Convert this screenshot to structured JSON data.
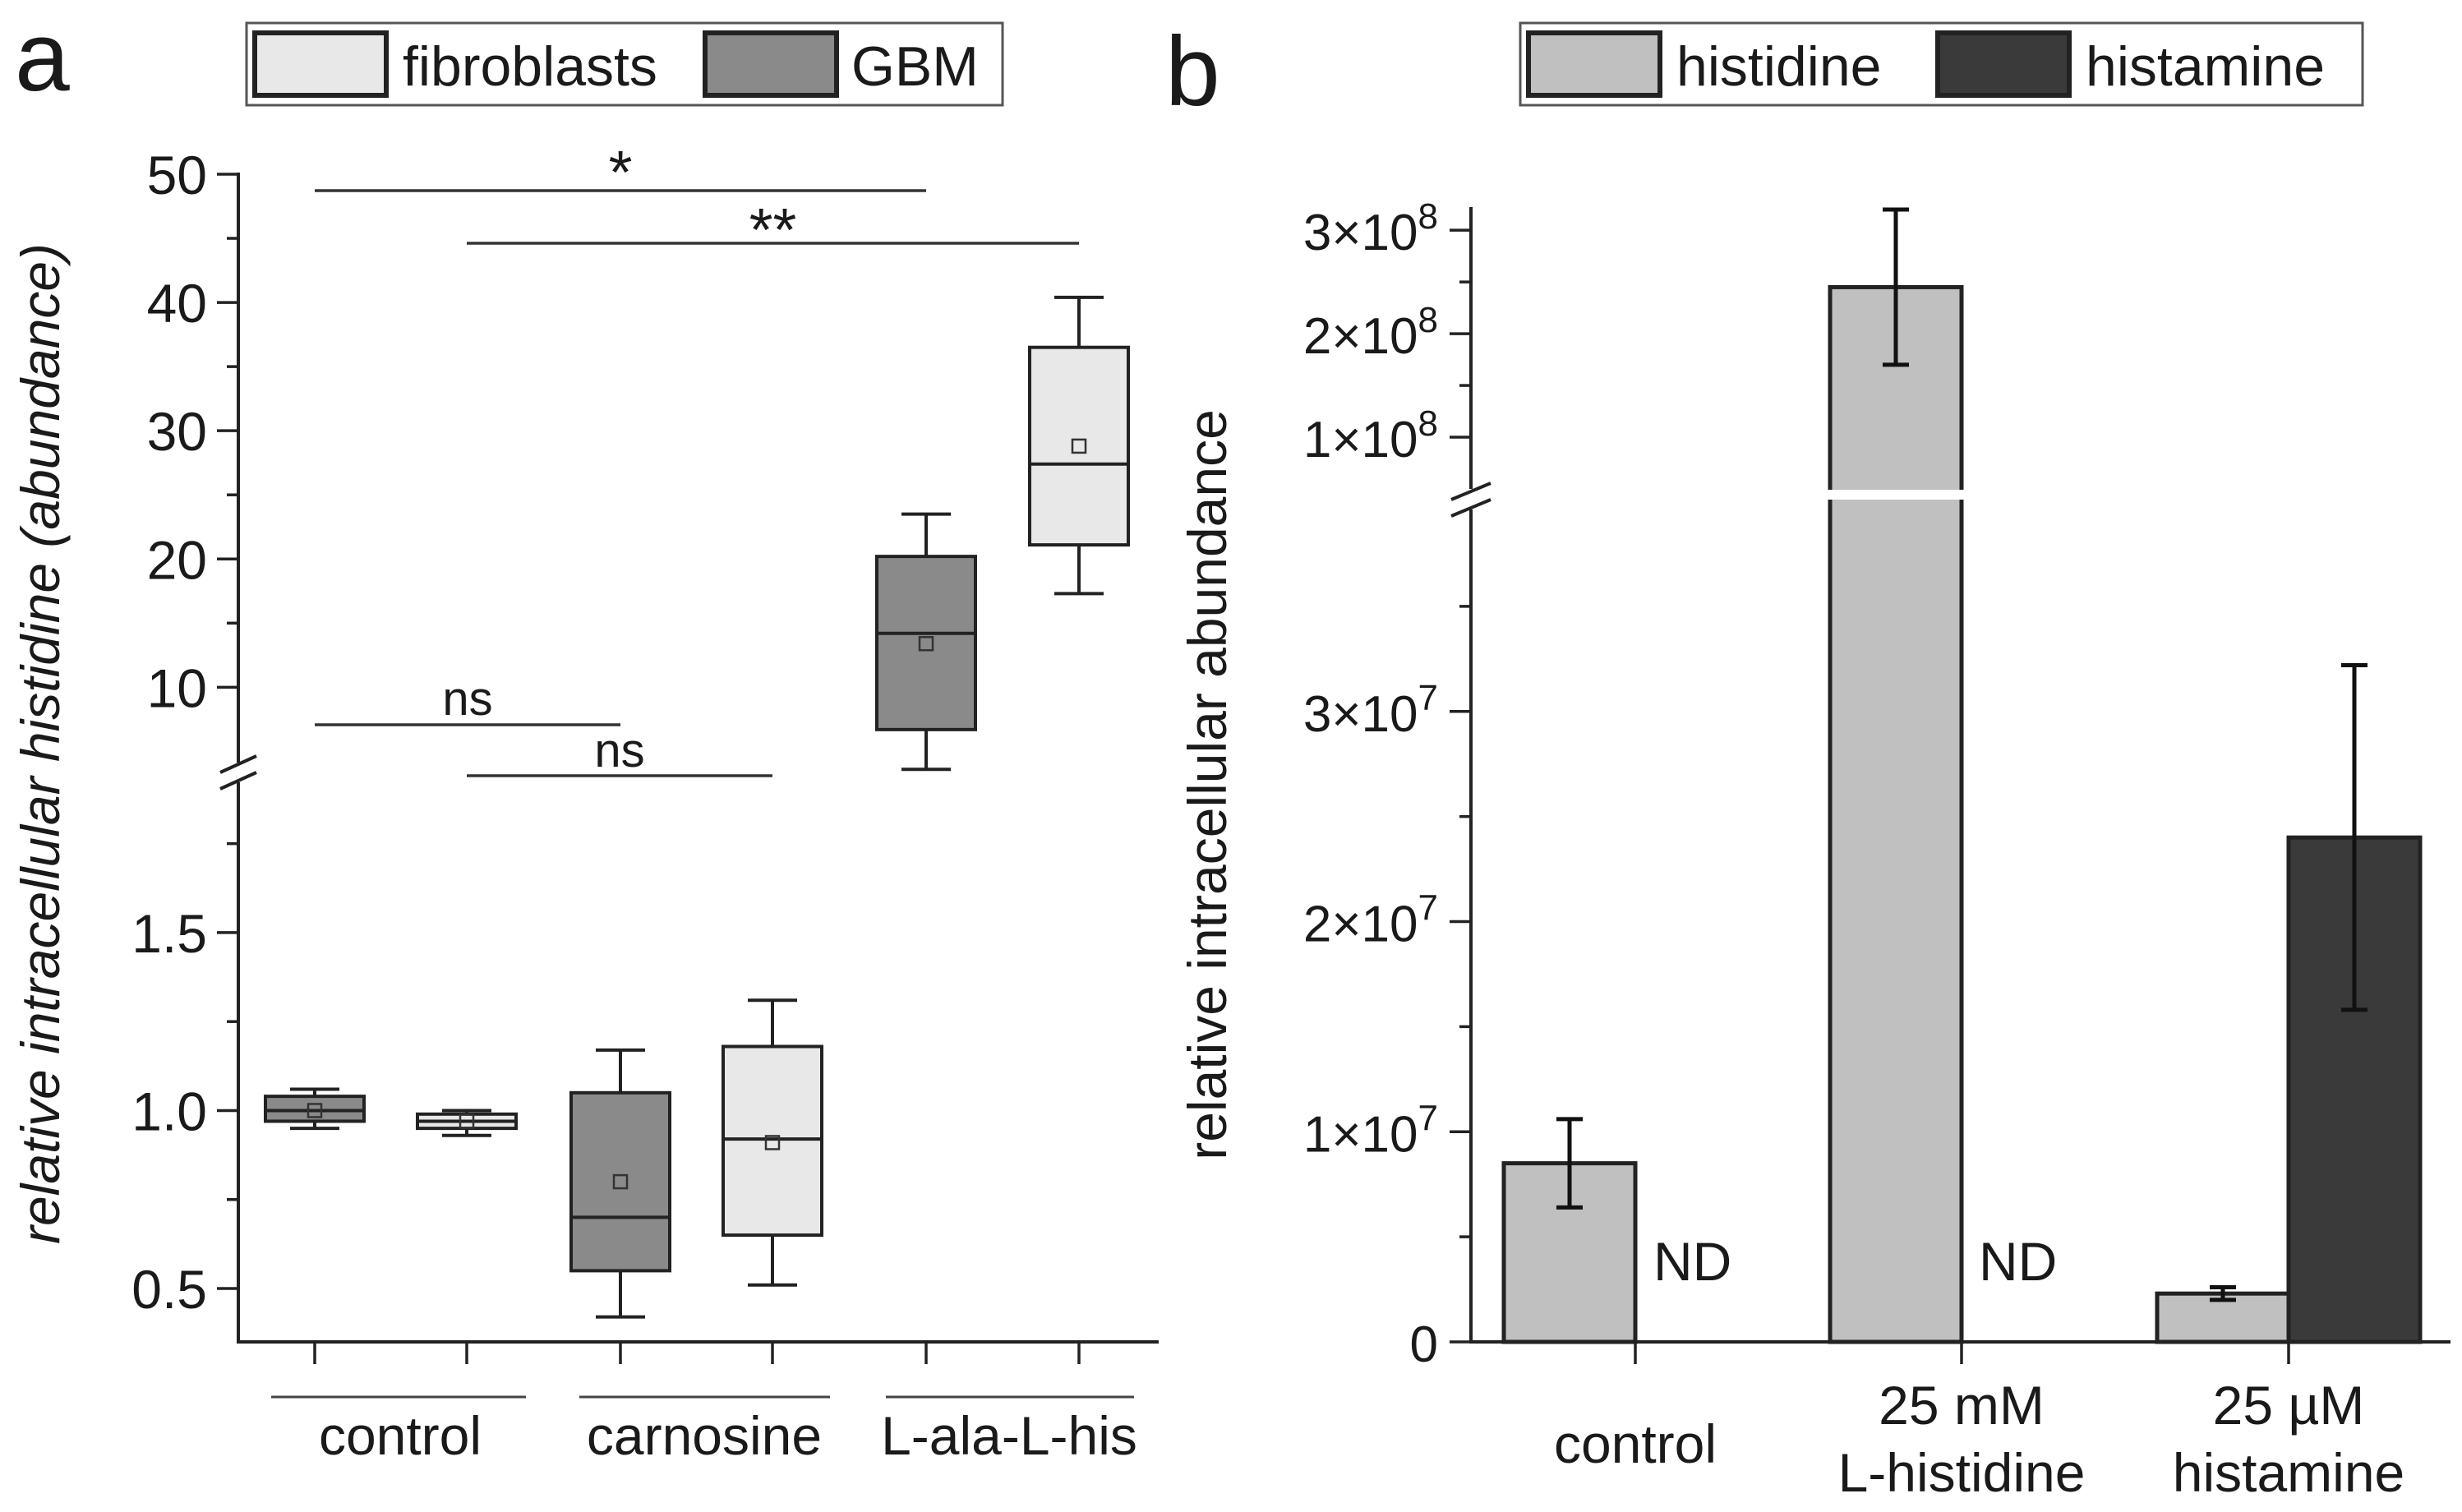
{
  "panel_labels": {
    "a": "a",
    "b": "b"
  },
  "colors": {
    "fibroblasts": "#e8e8e8",
    "GBM": "#8a8a8a",
    "histidine": "#c0c0c0",
    "histamine": "#3a3a3a",
    "axis": "#222222"
  },
  "chart_data": [
    {
      "type": "box",
      "panel": "a",
      "legend": [
        "fibroblasts",
        "GBM"
      ],
      "ylabel": "relative intracellular histidine (abundance)",
      "yaxis_break": {
        "lower_range": [
          0.35,
          1.95
        ],
        "upper_range": [
          4,
          50
        ]
      },
      "lower_ticks": [
        "0.5",
        "1.0",
        "1.5"
      ],
      "upper_ticks": [
        "10",
        "20",
        "30",
        "40",
        "50"
      ],
      "groups": [
        "control",
        "carnosine",
        "L-ala-L-his"
      ],
      "boxes": [
        {
          "group": "control",
          "series": "GBM",
          "min": 0.95,
          "q1": 0.97,
          "median": 1.0,
          "q3": 1.04,
          "max": 1.06,
          "mean": 1.0
        },
        {
          "group": "control",
          "series": "fibroblasts",
          "min": 0.93,
          "q1": 0.95,
          "median": 0.97,
          "q3": 0.99,
          "max": 1.0,
          "mean": 0.97
        },
        {
          "group": "carnosine",
          "series": "GBM",
          "min": 0.42,
          "q1": 0.55,
          "median": 0.7,
          "q3": 1.05,
          "max": 1.17,
          "mean": 0.8
        },
        {
          "group": "carnosine",
          "series": "fibroblasts",
          "min": 0.51,
          "q1": 0.65,
          "median": 0.92,
          "q3": 1.18,
          "max": 1.31,
          "mean": 0.91
        },
        {
          "group": "L-ala-L-his",
          "series": "GBM",
          "min": 3.6,
          "q1": 6.7,
          "median": 14.2,
          "q3": 20.2,
          "max": 23.5,
          "mean": 13.4
        },
        {
          "group": "L-ala-L-his",
          "series": "fibroblasts",
          "min": 17.3,
          "q1": 21.1,
          "median": 27.4,
          "q3": 36.5,
          "max": 40.4,
          "mean": 28.8
        }
      ],
      "significance": [
        {
          "label": "*",
          "from": "control GBM",
          "to": "L-ala-L-his GBM"
        },
        {
          "label": "**",
          "from": "control fibroblasts",
          "to": "L-ala-L-his fibroblasts"
        },
        {
          "label": "ns",
          "from": "control GBM",
          "to": "carnosine GBM"
        },
        {
          "label": "ns",
          "from": "control fibroblasts",
          "to": "carnosine fibroblasts"
        }
      ]
    },
    {
      "type": "bar",
      "panel": "b",
      "legend": [
        "histidine",
        "histamine"
      ],
      "ylabel": "relative intracellular abundance",
      "yaxis_break": {
        "lower_range": [
          0,
          40000000
        ],
        "upper_range": [
          50000000,
          320000000
        ]
      },
      "lower_ticks": [
        "0",
        "1×10^7",
        "2×10^7",
        "3×10^7"
      ],
      "upper_ticks": [
        "1×10^8",
        "2×10^8",
        "3×10^8"
      ],
      "categories": [
        [
          "control"
        ],
        [
          "25 mM",
          "L-histidine"
        ],
        [
          "25 µM",
          "histamine"
        ]
      ],
      "series": [
        {
          "name": "histidine",
          "values": [
            8500000,
            245000000,
            2300000
          ],
          "errors": [
            2100000,
            75000000,
            300000
          ]
        },
        {
          "name": "histamine",
          "values": [
            null,
            null,
            24000000
          ],
          "errors": [
            null,
            null,
            8200000
          ]
        }
      ],
      "annotations": [
        "ND",
        "ND"
      ]
    }
  ]
}
